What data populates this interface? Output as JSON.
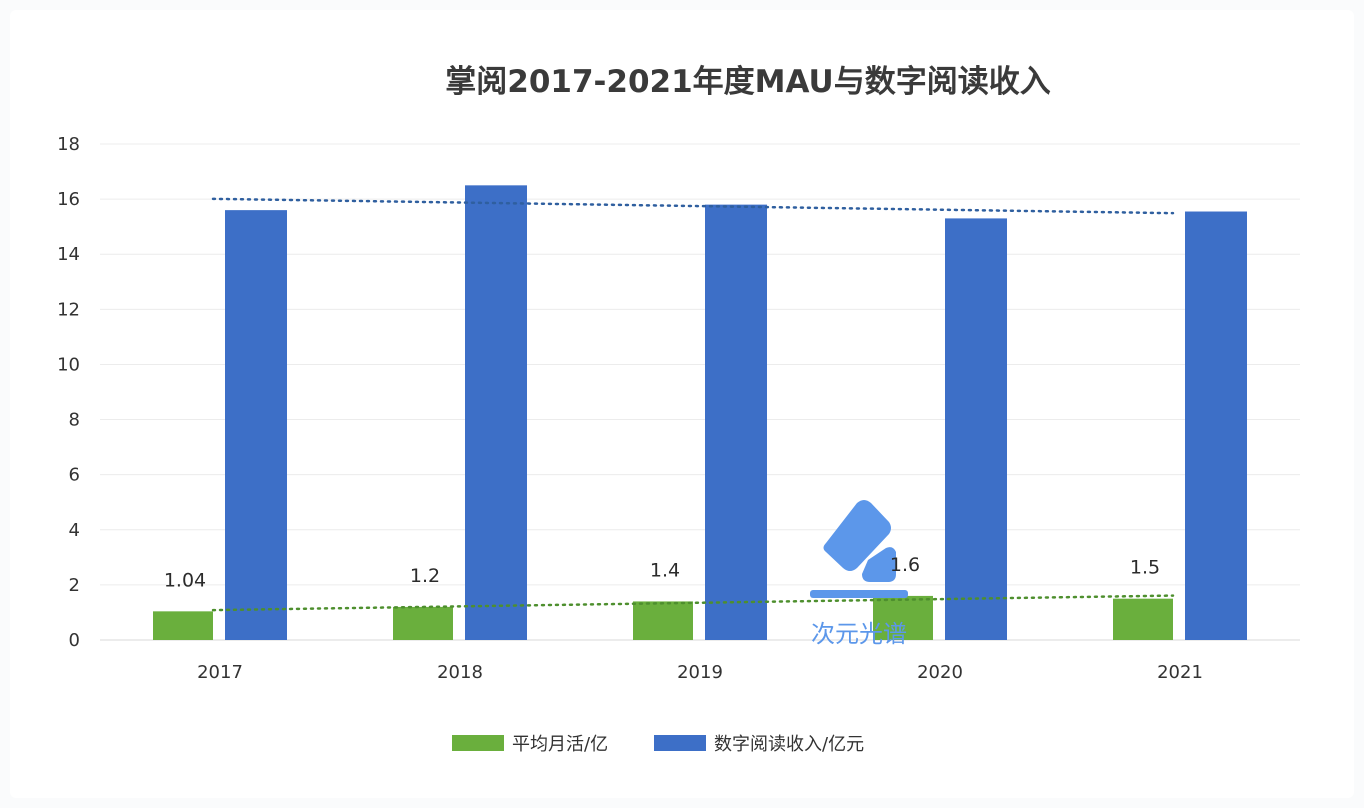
{
  "chart_data": {
    "type": "bar",
    "title": "掌阅2017-2021年度MAU与数字阅读收入",
    "categories": [
      "2017",
      "2018",
      "2019",
      "2020",
      "2021"
    ],
    "series": [
      {
        "name": "平均月活/亿",
        "color": "#6aaf3d",
        "values": [
          1.04,
          1.2,
          1.4,
          1.6,
          1.5
        ],
        "data_labels": [
          "1.04",
          "1.2",
          "1.4",
          "1.6",
          "1.5"
        ],
        "trendline": {
          "style": "dotted",
          "color": "#4e8f2e"
        }
      },
      {
        "name": "数字阅读收入/亿元",
        "color": "#3d6fc7",
        "values": [
          15.6,
          16.5,
          15.8,
          15.3,
          15.55
        ],
        "trendline": {
          "style": "dotted",
          "color": "#2f5f9f"
        }
      }
    ],
    "ylim": [
      0,
      18
    ],
    "yticks": [
      "0",
      "2",
      "4",
      "6",
      "8",
      "10",
      "12",
      "14",
      "16",
      "18"
    ],
    "grid": true,
    "legend": "bottom"
  },
  "watermark": {
    "text": "次元光谱",
    "color": "#5c97ea"
  }
}
